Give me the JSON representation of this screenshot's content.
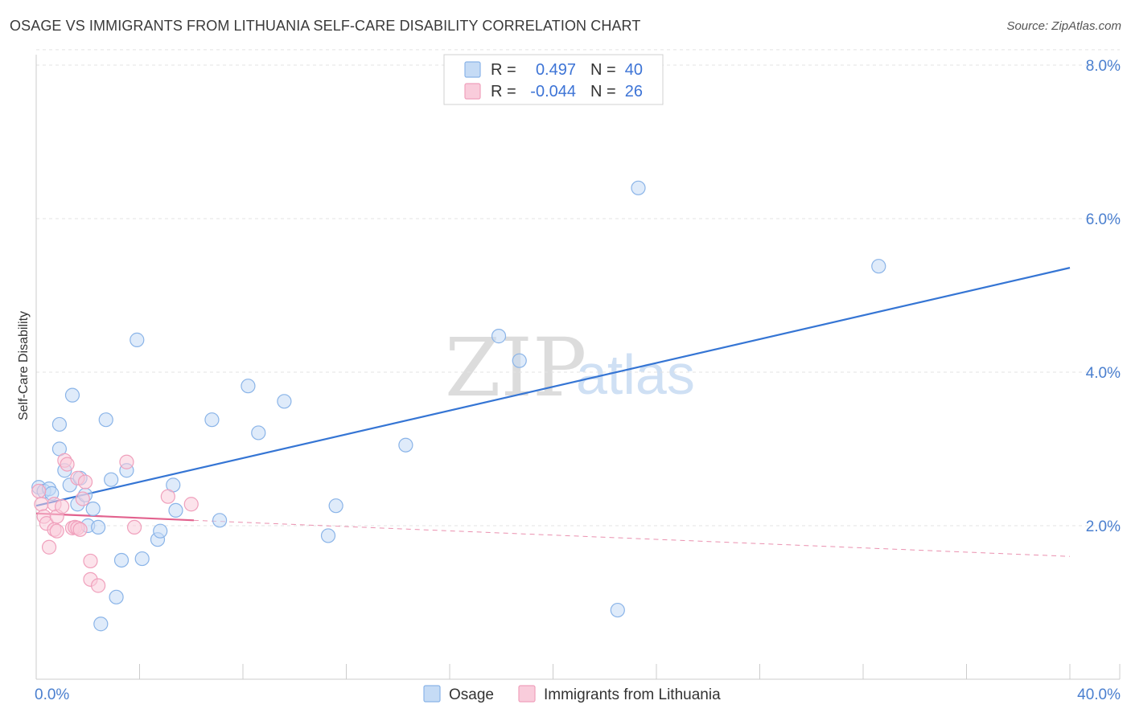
{
  "title": "OSAGE VS IMMIGRANTS FROM LITHUANIA SELF-CARE DISABILITY CORRELATION CHART",
  "source": "Source: ZipAtlas.com",
  "watermark": {
    "zip": "ZIP",
    "atlas": "atlas"
  },
  "chart_data": {
    "type": "scatter",
    "title": "OSAGE VS IMMIGRANTS FROM LITHUANIA SELF-CARE DISABILITY CORRELATION CHART",
    "xlabel": "",
    "ylabel": "Self-Care Disability",
    "xlim": [
      0,
      40
    ],
    "ylim": [
      0,
      8.5
    ],
    "x_tick_labels": [
      {
        "value": 0,
        "label": "0.0%"
      },
      {
        "value": 40,
        "label": "40.0%"
      }
    ],
    "y_tick_labels": [
      {
        "value": 2,
        "label": "2.0%"
      },
      {
        "value": 4,
        "label": "4.0%"
      },
      {
        "value": 6,
        "label": "6.0%"
      },
      {
        "value": 8,
        "label": "8.0%"
      }
    ],
    "x_minor_ticks": [
      0,
      4,
      8,
      12,
      16,
      20,
      24,
      28,
      32,
      36,
      40
    ],
    "gridlines": [
      2,
      4,
      6,
      8,
      8.2
    ],
    "series": [
      {
        "name": "Osage",
        "color": "#8ab4e8",
        "fill": "#c5dbf5",
        "line_color": "#3575d4",
        "R": "0.497",
        "N": "40",
        "trend": {
          "x0": 0,
          "y0": 2.26,
          "x1": 40,
          "y1": 5.36,
          "dashed_to": 40
        },
        "points": [
          [
            0.1,
            2.5
          ],
          [
            0.3,
            2.45
          ],
          [
            0.5,
            2.48
          ],
          [
            0.6,
            2.42
          ],
          [
            0.9,
            3.0
          ],
          [
            0.9,
            3.32
          ],
          [
            1.1,
            2.72
          ],
          [
            1.3,
            2.53
          ],
          [
            1.4,
            3.7
          ],
          [
            1.6,
            2.28
          ],
          [
            1.7,
            2.62
          ],
          [
            1.9,
            2.4
          ],
          [
            2.0,
            2.0
          ],
          [
            2.2,
            2.22
          ],
          [
            2.4,
            1.98
          ],
          [
            2.5,
            0.72
          ],
          [
            2.7,
            3.38
          ],
          [
            2.9,
            2.6
          ],
          [
            3.1,
            1.07
          ],
          [
            3.3,
            1.55
          ],
          [
            3.5,
            2.72
          ],
          [
            3.9,
            4.42
          ],
          [
            4.1,
            1.57
          ],
          [
            4.7,
            1.82
          ],
          [
            4.8,
            1.93
          ],
          [
            5.3,
            2.53
          ],
          [
            5.4,
            2.2
          ],
          [
            6.8,
            3.38
          ],
          [
            7.1,
            2.07
          ],
          [
            8.2,
            3.82
          ],
          [
            8.6,
            3.21
          ],
          [
            9.6,
            3.62
          ],
          [
            11.3,
            1.87
          ],
          [
            11.6,
            2.26
          ],
          [
            14.3,
            3.05
          ],
          [
            17.9,
            4.47
          ],
          [
            18.7,
            4.15
          ],
          [
            22.5,
            0.9
          ],
          [
            23.3,
            6.4
          ],
          [
            32.6,
            5.38
          ]
        ]
      },
      {
        "name": "Immigrants from Lithuania",
        "color": "#f0a0bc",
        "fill": "#f9ccdb",
        "line_color": "#e2628e",
        "R": "-0.044",
        "N": "26",
        "trend": {
          "x0": 0,
          "y0": 2.16,
          "x1": 6.1,
          "y1": 2.07,
          "dashed_to": 40,
          "y_end": 1.6
        },
        "points": [
          [
            0.1,
            2.45
          ],
          [
            0.2,
            2.28
          ],
          [
            0.3,
            2.12
          ],
          [
            0.4,
            2.03
          ],
          [
            0.5,
            1.72
          ],
          [
            0.7,
            2.28
          ],
          [
            0.7,
            1.95
          ],
          [
            0.8,
            1.93
          ],
          [
            0.8,
            2.12
          ],
          [
            1.0,
            2.25
          ],
          [
            1.1,
            2.85
          ],
          [
            1.2,
            2.8
          ],
          [
            1.4,
            1.97
          ],
          [
            1.5,
            1.98
          ],
          [
            1.6,
            2.62
          ],
          [
            1.6,
            1.97
          ],
          [
            1.7,
            1.95
          ],
          [
            1.8,
            2.35
          ],
          [
            1.9,
            2.57
          ],
          [
            2.1,
            1.54
          ],
          [
            2.1,
            1.3
          ],
          [
            2.4,
            1.22
          ],
          [
            3.5,
            2.83
          ],
          [
            3.8,
            1.98
          ],
          [
            5.1,
            2.38
          ],
          [
            6.0,
            2.28
          ]
        ]
      }
    ]
  }
}
